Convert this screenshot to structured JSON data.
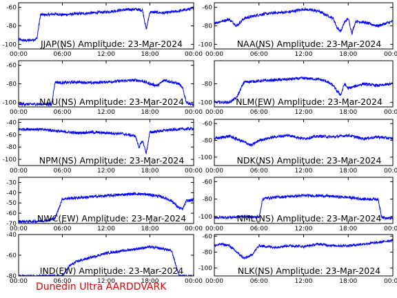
{
  "footer_text": "Dunedin Ultra AARDDVARK",
  "trace_color": "#0000ff",
  "footer_color": "#e00000",
  "chart_data": [
    {
      "type": "line",
      "title": "JJAP(NS) Amplitude: 23-Mar-2024",
      "x_ticks": [
        "00:00",
        "06:00",
        "12:00",
        "18:00",
        "00:00"
      ],
      "ylim": [
        -105,
        -55
      ],
      "y_ticks": [
        -60,
        -80,
        -100
      ],
      "series": [
        {
          "x": [
            0,
            1,
            2,
            2.5,
            3,
            4,
            5,
            6,
            8,
            10,
            12,
            14,
            16,
            17,
            17.5,
            18,
            20,
            22,
            24
          ],
          "y": [
            -95,
            -96,
            -95,
            -94,
            -68,
            -68,
            -67,
            -68,
            -67,
            -66,
            -65,
            -63,
            -62,
            -63,
            -84,
            -65,
            -66,
            -64,
            -61
          ]
        }
      ]
    },
    {
      "type": "line",
      "title": "NAA(NS) Amplitude: 23-Mar-2024",
      "x_ticks": [
        "00:00",
        "06:00",
        "12:00",
        "18:00",
        "00:00"
      ],
      "ylim": [
        -105,
        -55
      ],
      "y_ticks": [
        -60,
        -80,
        -100
      ],
      "series": [
        {
          "x": [
            0,
            1,
            2,
            3,
            4,
            6,
            8,
            10,
            12,
            14,
            15,
            16,
            16.5,
            17,
            17.5,
            18,
            18.5,
            19,
            20,
            22,
            24
          ],
          "y": [
            -77,
            -75,
            -73,
            -80,
            -72,
            -68,
            -66,
            -65,
            -62,
            -64,
            -68,
            -72,
            -82,
            -86,
            -76,
            -72,
            -88,
            -75,
            -76,
            -80,
            -75
          ]
        }
      ]
    },
    {
      "type": "line",
      "title": "NAU(NS) Amplitude: 23-Mar-2024",
      "x_ticks": [
        "00:00",
        "06:00",
        "12:00",
        "18:00",
        "00:00"
      ],
      "ylim": [
        -105,
        -55
      ],
      "y_ticks": [
        -60,
        -80,
        -100
      ],
      "series": [
        {
          "x": [
            0,
            2,
            4,
            4.5,
            5,
            6,
            8,
            10,
            12,
            14,
            16,
            17,
            18,
            19,
            20,
            22,
            22.5,
            23,
            24
          ],
          "y": [
            -102,
            -102,
            -102,
            -103,
            -78,
            -79,
            -78,
            -79,
            -78,
            -77,
            -76,
            -77,
            -80,
            -82,
            -76,
            -80,
            -85,
            -100,
            -103
          ]
        }
      ]
    },
    {
      "type": "line",
      "title": "NLM(EW) Amplitude: 23-Mar-2024",
      "x_ticks": [
        "00:00",
        "06:00",
        "12:00",
        "18:00",
        "00:00"
      ],
      "ylim": [
        -105,
        -55
      ],
      "y_ticks": [
        -80,
        -100
      ],
      "series": [
        {
          "x": [
            0,
            1,
            2,
            3,
            4,
            6,
            8,
            10,
            12,
            14,
            15,
            16,
            16.5,
            17,
            17.5,
            18,
            20,
            22,
            24
          ],
          "y": [
            -100,
            -100,
            -100,
            -95,
            -78,
            -77,
            -76,
            -75,
            -74,
            -75,
            -77,
            -82,
            -88,
            -92,
            -80,
            -85,
            -80,
            -82,
            -80
          ]
        }
      ]
    },
    {
      "type": "line",
      "title": "NPM(NS) Amplitude: 23-Mar-2024",
      "x_ticks": [
        "00:00",
        "06:00",
        "12:00",
        "18:00",
        "00:00"
      ],
      "ylim": [
        -110,
        -35
      ],
      "y_ticks": [
        -40,
        -60,
        -80,
        -100
      ],
      "series": [
        {
          "x": [
            0,
            2,
            4,
            6,
            8,
            10,
            12,
            14,
            15,
            16,
            16.5,
            17,
            17.5,
            18,
            20,
            22,
            24
          ],
          "y": [
            -51,
            -51,
            -52,
            -55,
            -57,
            -56,
            -57,
            -58,
            -60,
            -62,
            -80,
            -70,
            -90,
            -56,
            -53,
            -51,
            -50
          ]
        }
      ]
    },
    {
      "type": "line",
      "title": "NDK(NS) Amplitude: 23-Mar-2024",
      "x_ticks": [
        "00:00",
        "06:00",
        "12:00",
        "18:00",
        "00:00"
      ],
      "ylim": [
        -110,
        -55
      ],
      "y_ticks": [
        -60,
        -80,
        -100
      ],
      "series": [
        {
          "x": [
            0,
            2,
            4,
            5,
            6,
            8,
            10,
            12,
            14,
            16,
            18,
            20,
            22,
            24
          ],
          "y": [
            -78,
            -75,
            -82,
            -86,
            -80,
            -76,
            -74,
            -78,
            -75,
            -76,
            -74,
            -78,
            -76,
            -78
          ]
        }
      ]
    },
    {
      "type": "line",
      "title": "NWC(EW) Amplitude: 23-Mar-2024",
      "x_ticks": [
        "00:00",
        "06:00",
        "12:00",
        "18:00",
        "00:00"
      ],
      "ylim": [
        -70,
        -25
      ],
      "y_ticks": [
        -30,
        -40,
        -50,
        -60,
        -70
      ],
      "series": [
        {
          "x": [
            0,
            2,
            4,
            5,
            6,
            8,
            10,
            12,
            14,
            16,
            18,
            19,
            20,
            21,
            22,
            22.5,
            23,
            24
          ],
          "y": [
            -68,
            -68,
            -67,
            -65,
            -46,
            -45,
            -44,
            -43,
            -42,
            -41,
            -42,
            -43,
            -45,
            -48,
            -55,
            -56,
            -48,
            -47
          ]
        }
      ]
    },
    {
      "type": "line",
      "title": "NML(NS) Amplitude: 23-Mar-2024",
      "x_ticks": [
        "00:00",
        "06:00",
        "12:00",
        "18:00",
        "00:00"
      ],
      "ylim": [
        -108,
        -55
      ],
      "y_ticks": [
        -60,
        -80,
        -100
      ],
      "series": [
        {
          "x": [
            0,
            2,
            4,
            6,
            6.5,
            7,
            8,
            10,
            12,
            14,
            16,
            18,
            20,
            22,
            22.5,
            23,
            24
          ],
          "y": [
            -101,
            -101,
            -100,
            -101,
            -80,
            -79,
            -78,
            -77,
            -76,
            -76,
            -77,
            -78,
            -80,
            -80,
            -100,
            -102,
            -102
          ]
        }
      ]
    },
    {
      "type": "line",
      "title": "IND(EW) Amplitude: 23-Mar-2024",
      "x_ticks": [
        "00:00",
        "06:00",
        "12:00",
        "18:00",
        "00:00"
      ],
      "ylim": [
        -80,
        -40
      ],
      "y_ticks": [
        -40,
        -60,
        -80
      ],
      "series": [
        {
          "x": [
            0,
            2,
            4,
            6,
            7,
            8,
            10,
            12,
            14,
            16,
            18,
            20,
            21,
            22,
            24
          ],
          "y": [
            -80,
            -80,
            -80,
            -80,
            -70,
            -66,
            -62,
            -58,
            -56,
            -54,
            -52,
            -54,
            -56,
            -80,
            -80
          ]
        }
      ]
    },
    {
      "type": "line",
      "title": "NLK(NS) Amplitude: 23-Mar-2024",
      "x_ticks": [
        "00:00",
        "06:00",
        "12:00",
        "18:00",
        "00:00"
      ],
      "ylim": [
        -110,
        -58
      ],
      "y_ticks": [
        -60,
        -80,
        -100
      ],
      "series": [
        {
          "x": [
            0,
            1,
            2,
            3,
            4,
            5,
            6,
            7,
            8,
            10,
            12,
            14,
            16,
            18,
            20,
            22,
            24
          ],
          "y": [
            -72,
            -70,
            -72,
            -80,
            -88,
            -84,
            -72,
            -73,
            -74,
            -72,
            -73,
            -70,
            -72,
            -72,
            -70,
            -68,
            -65
          ]
        }
      ]
    }
  ]
}
